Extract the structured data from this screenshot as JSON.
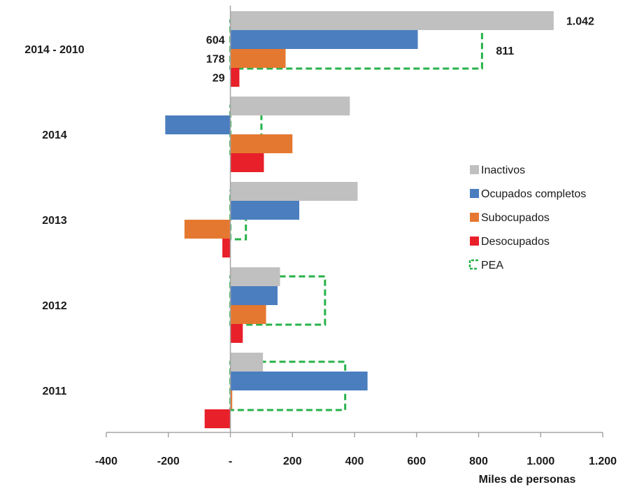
{
  "chart_data": {
    "type": "bar",
    "orientation": "horizontal",
    "xlabel": "Miles de personas",
    "xlim": [
      -400,
      1200
    ],
    "xticks": [
      -400,
      -200,
      0,
      200,
      400,
      600,
      800,
      1000,
      1200
    ],
    "xtick_labels": [
      "-400",
      "-200",
      "-",
      "200",
      "400",
      "600",
      "800",
      "1.000",
      "1.200"
    ],
    "categories": [
      "2014 - 2010",
      "2014",
      "2013",
      "2012",
      "2011"
    ],
    "series": [
      {
        "name": "Inactivos",
        "color": "#c0c0c0",
        "values": [
          1042,
          385,
          410,
          160,
          105
        ]
      },
      {
        "name": "Ocupados completos",
        "color": "#4a7ebf",
        "values": [
          604,
          -210,
          222,
          152,
          442
        ]
      },
      {
        "name": "Subocupados",
        "color": "#e57830",
        "values": [
          178,
          200,
          -148,
          115,
          6
        ]
      },
      {
        "name": "Desocupados",
        "color": "#e8202a",
        "values": [
          29,
          108,
          -26,
          40,
          -83
        ]
      }
    ],
    "pea": {
      "name": "PEA",
      "color": "#27b24a",
      "values": [
        811,
        100,
        50,
        305,
        370
      ]
    },
    "data_labels": [
      {
        "category": 0,
        "series": "Inactivos",
        "text": "1.042"
      },
      {
        "category": 0,
        "series": "Ocupados completos",
        "text": "604"
      },
      {
        "category": 0,
        "series": "Subocupados",
        "text": "178"
      },
      {
        "category": 0,
        "series": "Desocupados",
        "text": "29"
      },
      {
        "category": 0,
        "series": "PEA",
        "text": "811"
      }
    ],
    "legend": {
      "position": "right",
      "entries": [
        "Inactivos",
        "Ocupados completos",
        "Subocupados",
        "Desocupados",
        "PEA"
      ]
    }
  }
}
